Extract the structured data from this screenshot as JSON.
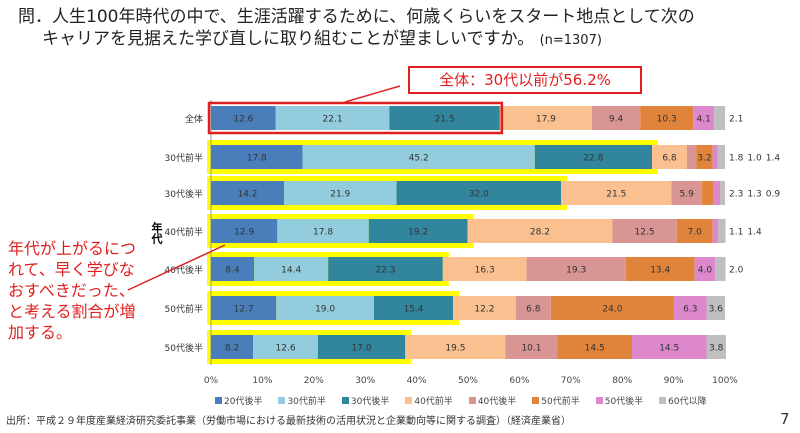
{
  "title": {
    "line1": "問．人生100年時代の中で、生涯活躍するために、何歳くらいをスタート地点として次の",
    "line2": "キャリアを見据えた学び直しに取り組むことが望ましいですか。",
    "n": "(n=1307)"
  },
  "callout_top": "全体：30代以前が56.2%",
  "callout_left": "年代が上がるにつれて、早く学びなおすべきだった、と考える割合が増加する。",
  "source": "出所：平成２９年度産業経済研究委託事業（労働市場における最新技術の活用状況と企業動向等に関する調査）（経済産業省）",
  "page_number": "7",
  "chart_data": {
    "type": "bar",
    "orientation": "horizontal-stacked-100",
    "ylabel": "年代",
    "categories": [
      "全体",
      "30代前半",
      "30代後半",
      "40代前半",
      "40代後半",
      "50代前半",
      "50代後半"
    ],
    "xlim": [
      0,
      100
    ],
    "xticks": [
      "0%",
      "10%",
      "20%",
      "30%",
      "40%",
      "50%",
      "60%",
      "70%",
      "80%",
      "90%",
      "100%"
    ],
    "legend_position": "bottom",
    "series": [
      {
        "name": "20代後半",
        "color": "#4a7ebb",
        "values": [
          12.6,
          17.8,
          14.2,
          12.9,
          8.4,
          12.7,
          8.2
        ]
      },
      {
        "name": "30代前半",
        "color": "#93cddd",
        "values": [
          22.1,
          45.2,
          21.9,
          17.8,
          14.4,
          19.0,
          12.6
        ]
      },
      {
        "name": "30代後半",
        "color": "#31859c",
        "values": [
          21.5,
          22.8,
          32.0,
          19.2,
          22.3,
          15.4,
          17.0
        ]
      },
      {
        "name": "40代前半",
        "color": "#fac090",
        "values": [
          17.9,
          6.8,
          21.5,
          28.2,
          16.3,
          12.2,
          19.5
        ]
      },
      {
        "name": "40代後半",
        "color": "#d99594",
        "values": [
          9.4,
          1.8,
          5.9,
          12.5,
          19.3,
          6.8,
          10.1
        ]
      },
      {
        "name": "50代前半",
        "color": "#e0843c",
        "values": [
          10.3,
          3.2,
          2.3,
          7.0,
          13.4,
          24.0,
          14.5
        ]
      },
      {
        "name": "50代後半",
        "color": "#dd88cc",
        "values": [
          4.1,
          1.0,
          1.3,
          1.1,
          4.0,
          6.3,
          14.5
        ]
      },
      {
        "name": "60代以降",
        "color": "#bfbfbf",
        "values": [
          2.1,
          1.4,
          0.9,
          1.4,
          2.0,
          3.6,
          3.8
        ]
      }
    ],
    "highlight_color": "#ffff00",
    "highlight_box_color": "#e02020"
  }
}
